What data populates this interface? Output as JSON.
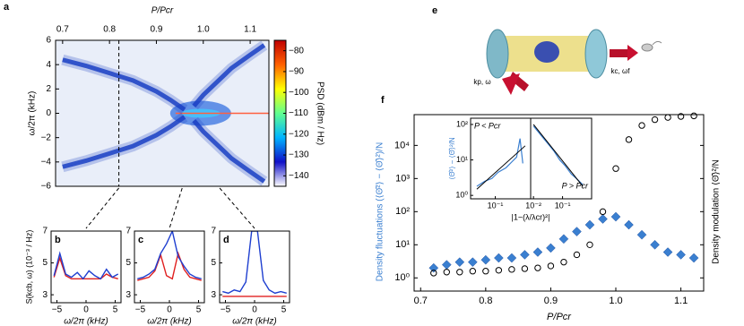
{
  "chart_data": [
    {
      "panel": "a",
      "type": "heatmap",
      "xlabel": "P/Pcr",
      "ylabel": "ω/2π (kHz)",
      "xlim": [
        0.685,
        1.14
      ],
      "xticks": [
        0.7,
        0.8,
        0.9,
        {
          "value": 1,
          "label": "1.0"
        },
        1.1
      ],
      "ylim": [
        -6,
        6
      ],
      "yticks": [
        {
          "value": -6,
          "label": "−6"
        },
        {
          "value": -4,
          "label": "−4"
        },
        {
          "value": -2,
          "label": "−2"
        },
        0,
        2,
        4,
        6
      ],
      "colorbar": {
        "label": "PSD (dBm / Hz)",
        "lim": [
          -145,
          -75
        ],
        "ticks": [
          {
            "value": -140,
            "label": "−140"
          },
          {
            "value": -130,
            "label": "−130"
          },
          {
            "value": -120,
            "label": "−120"
          },
          {
            "value": -110,
            "label": "−110"
          },
          {
            "value": -100,
            "label": "−100"
          },
          {
            "value": -90,
            "label": "−90"
          },
          {
            "value": -80,
            "label": "−80"
          }
        ],
        "colors": [
          "#ffffff",
          "#1010c8",
          "#00b4ff",
          "#60ff90",
          "#ffff00",
          "#ff6000",
          "#c00000"
        ]
      },
      "cuts": [
        0.82,
        0.955,
        1.035
      ],
      "series": [
        {
          "color": "#1a3fc4",
          "x": [
            0.7,
            0.75,
            0.8,
            0.85,
            0.9,
            0.93,
            0.96
          ],
          "values": [
            4.4,
            3.9,
            3.3,
            2.7,
            1.8,
            1.1,
            0.3
          ]
        },
        {
          "color": "#1a3fc4",
          "x": [
            0.7,
            0.75,
            0.8,
            0.85,
            0.9,
            0.93,
            0.96
          ],
          "values": [
            -4.4,
            -3.9,
            -3.3,
            -2.7,
            -1.8,
            -1.1,
            -0.3
          ]
        },
        {
          "color": "#1a3fc4",
          "x": [
            0.98,
            1.0,
            1.03,
            1.06,
            1.1,
            1.13
          ],
          "values": [
            0.6,
            1.5,
            2.6,
            3.7,
            4.8,
            5.6
          ]
        },
        {
          "color": "#1a3fc4",
          "x": [
            0.98,
            1.0,
            1.03,
            1.06,
            1.1,
            1.13
          ],
          "values": [
            -0.6,
            -1.5,
            -2.6,
            -3.7,
            -4.8,
            -5.6
          ]
        }
      ]
    },
    {
      "panel": "b",
      "type": "line",
      "ylabel": "S(kcb, ω) (10⁻³ / Hz)",
      "xlabel": "ω/2π (kHz)",
      "xlim": [
        -6,
        6
      ],
      "xticks": [
        {
          "value": -5,
          "label": "−5"
        },
        0,
        5
      ],
      "ylim": [
        2.5,
        7
      ],
      "yticks": [
        3,
        5,
        7
      ],
      "x": [
        -5.5,
        -4.5,
        -3.5,
        -2.5,
        -1.5,
        -0.5,
        0.5,
        1.5,
        2.5,
        3.5,
        4.5,
        5.5
      ],
      "series": [
        {
          "color": "#1f3fd0",
          "values": [
            4.2,
            5.6,
            4.3,
            4.1,
            4.4,
            4.0,
            4.5,
            4.2,
            4.0,
            4.6,
            4.1,
            4.3
          ]
        },
        {
          "color": "#e02020",
          "values": [
            4.1,
            5.3,
            4.2,
            4.0,
            4.0,
            4.0,
            4.0,
            4.0,
            4.0,
            4.3,
            4.1,
            4.0
          ]
        }
      ]
    },
    {
      "panel": "c",
      "type": "line",
      "xlabel": "ω/2π (kHz)",
      "xlim": [
        -6,
        6
      ],
      "xticks": [
        {
          "value": -5,
          "label": "−5"
        },
        0,
        5
      ],
      "ylim": [
        2.5,
        7
      ],
      "yticks": [
        3,
        5,
        7
      ],
      "x": [
        -5.5,
        -4.5,
        -3.5,
        -2.5,
        -1.5,
        -0.5,
        0.5,
        1.5,
        2.5,
        3.5,
        4.5,
        5.5
      ],
      "series": [
        {
          "color": "#1f3fd0",
          "values": [
            4.0,
            4.1,
            4.3,
            4.6,
            5.6,
            6.2,
            7.0,
            5.4,
            4.8,
            4.3,
            4.1,
            4.0
          ]
        },
        {
          "color": "#e02020",
          "values": [
            3.9,
            4.0,
            4.1,
            4.5,
            5.5,
            4.2,
            4.0,
            5.6,
            4.6,
            4.1,
            4.0,
            3.9
          ]
        }
      ]
    },
    {
      "panel": "d",
      "type": "line",
      "xlabel": "ω/2π (kHz)",
      "xlim": [
        -6,
        6
      ],
      "xticks": [
        {
          "value": -5,
          "label": "−5"
        },
        0,
        5
      ],
      "ylim": [
        2.5,
        7
      ],
      "yticks": [
        3,
        5,
        7
      ],
      "x": [
        -5.5,
        -4.5,
        -3.5,
        -2.5,
        -1.5,
        -0.5,
        0.5,
        1.5,
        2.5,
        3.5,
        4.5,
        5.5
      ],
      "series": [
        {
          "color": "#1f3fd0",
          "values": [
            3.2,
            3.1,
            3.3,
            3.2,
            3.8,
            7.0,
            7.0,
            3.9,
            3.3,
            3.1,
            3.2,
            3.1
          ]
        },
        {
          "color": "#e02020",
          "values": [
            2.9,
            2.9,
            2.9,
            2.9,
            2.9,
            2.9,
            2.9,
            2.9,
            2.9,
            2.9,
            2.9,
            2.9
          ]
        }
      ]
    },
    {
      "panel": "e",
      "type": "illustration",
      "labels": [
        "kp, ω",
        "kc, ωf"
      ]
    },
    {
      "panel": "f",
      "type": "scatter",
      "log_y": true,
      "xlabel": "P/Pcr",
      "ylabel": "Density fluctuations (⟨Θ̂²⟩ − ⟨Θ̂⟩²)/N",
      "y2label": "Density modulation ⟨Θ̂⟩²/N",
      "xlim": [
        0.69,
        1.135
      ],
      "xticks": [
        0.7,
        0.8,
        0.9,
        {
          "value": 1,
          "label": "1.0"
        },
        1.1
      ],
      "ylim": [
        0.4,
        85000
      ],
      "yticks": [
        {
          "value": 1,
          "label": "10⁰"
        },
        {
          "value": 10,
          "label": "10¹"
        },
        {
          "value": 100,
          "label": "10²"
        },
        {
          "value": 1000,
          "label": "10³"
        },
        {
          "value": 10000,
          "label": "10⁴"
        }
      ],
      "x": [
        0.72,
        0.74,
        0.76,
        0.78,
        0.8,
        0.82,
        0.84,
        0.86,
        0.88,
        0.9,
        0.92,
        0.94,
        0.96,
        0.98,
        1.0,
        1.02,
        1.04,
        1.06,
        1.08,
        1.1,
        1.12
      ],
      "series": [
        {
          "color": "#3a7fd0",
          "marker": "diamond",
          "values": [
            2,
            2.5,
            3,
            3,
            3.5,
            4,
            4,
            5,
            6,
            8,
            15,
            25,
            40,
            60,
            70,
            40,
            20,
            10,
            6,
            5,
            4
          ]
        },
        {
          "color": "#000000",
          "marker": "circle",
          "values": [
            1.4,
            1.5,
            1.5,
            1.6,
            1.6,
            1.7,
            1.8,
            1.9,
            2,
            2.3,
            3,
            5,
            10,
            100,
            2000,
            15000,
            40000,
            60000,
            70000,
            75000,
            78000
          ]
        }
      ],
      "inset": {
        "ylabel": "⟨Θ̂²⟩ − ⟨Θ̂⟩²/N",
        "xlabel": "|1−(λ/λcr)²|",
        "ylim": [
          0.8,
          150
        ],
        "yticks": [
          {
            "value": 1,
            "label": "10⁰"
          },
          {
            "value": 10,
            "label": "10¹"
          },
          {
            "value": 100,
            "label": "10²"
          }
        ],
        "left": {
          "label": "P < Pcr",
          "xlim": [
            0.02,
            1
          ],
          "xticks": [
            {
              "value": 0.1,
              "label": "10⁻¹"
            }
          ],
          "x": [
            0.03,
            0.05,
            0.08,
            0.12,
            0.2,
            0.3,
            0.4,
            0.5,
            0.6
          ],
          "values": [
            1.8,
            2.5,
            3,
            4.5,
            6,
            9,
            12,
            40,
            8
          ],
          "fit_x": [
            0.03,
            0.7
          ],
          "fit": [
            1.5,
            25
          ]
        },
        "right": {
          "label": "P > Pcr",
          "xlim": [
            0.008,
            1
          ],
          "xticks": [
            {
              "value": 0.01,
              "label": "10⁻²"
            },
            {
              "value": 0.1,
              "label": "10⁻¹"
            }
          ],
          "x": [
            0.01,
            0.015,
            0.02,
            0.03,
            0.05,
            0.08,
            0.12,
            0.2,
            0.3,
            0.5
          ],
          "values": [
            90,
            60,
            45,
            30,
            18,
            10,
            7,
            4,
            3,
            2
          ],
          "fit_x": [
            0.01,
            0.5
          ],
          "fit": [
            100,
            1.8
          ]
        }
      }
    }
  ]
}
